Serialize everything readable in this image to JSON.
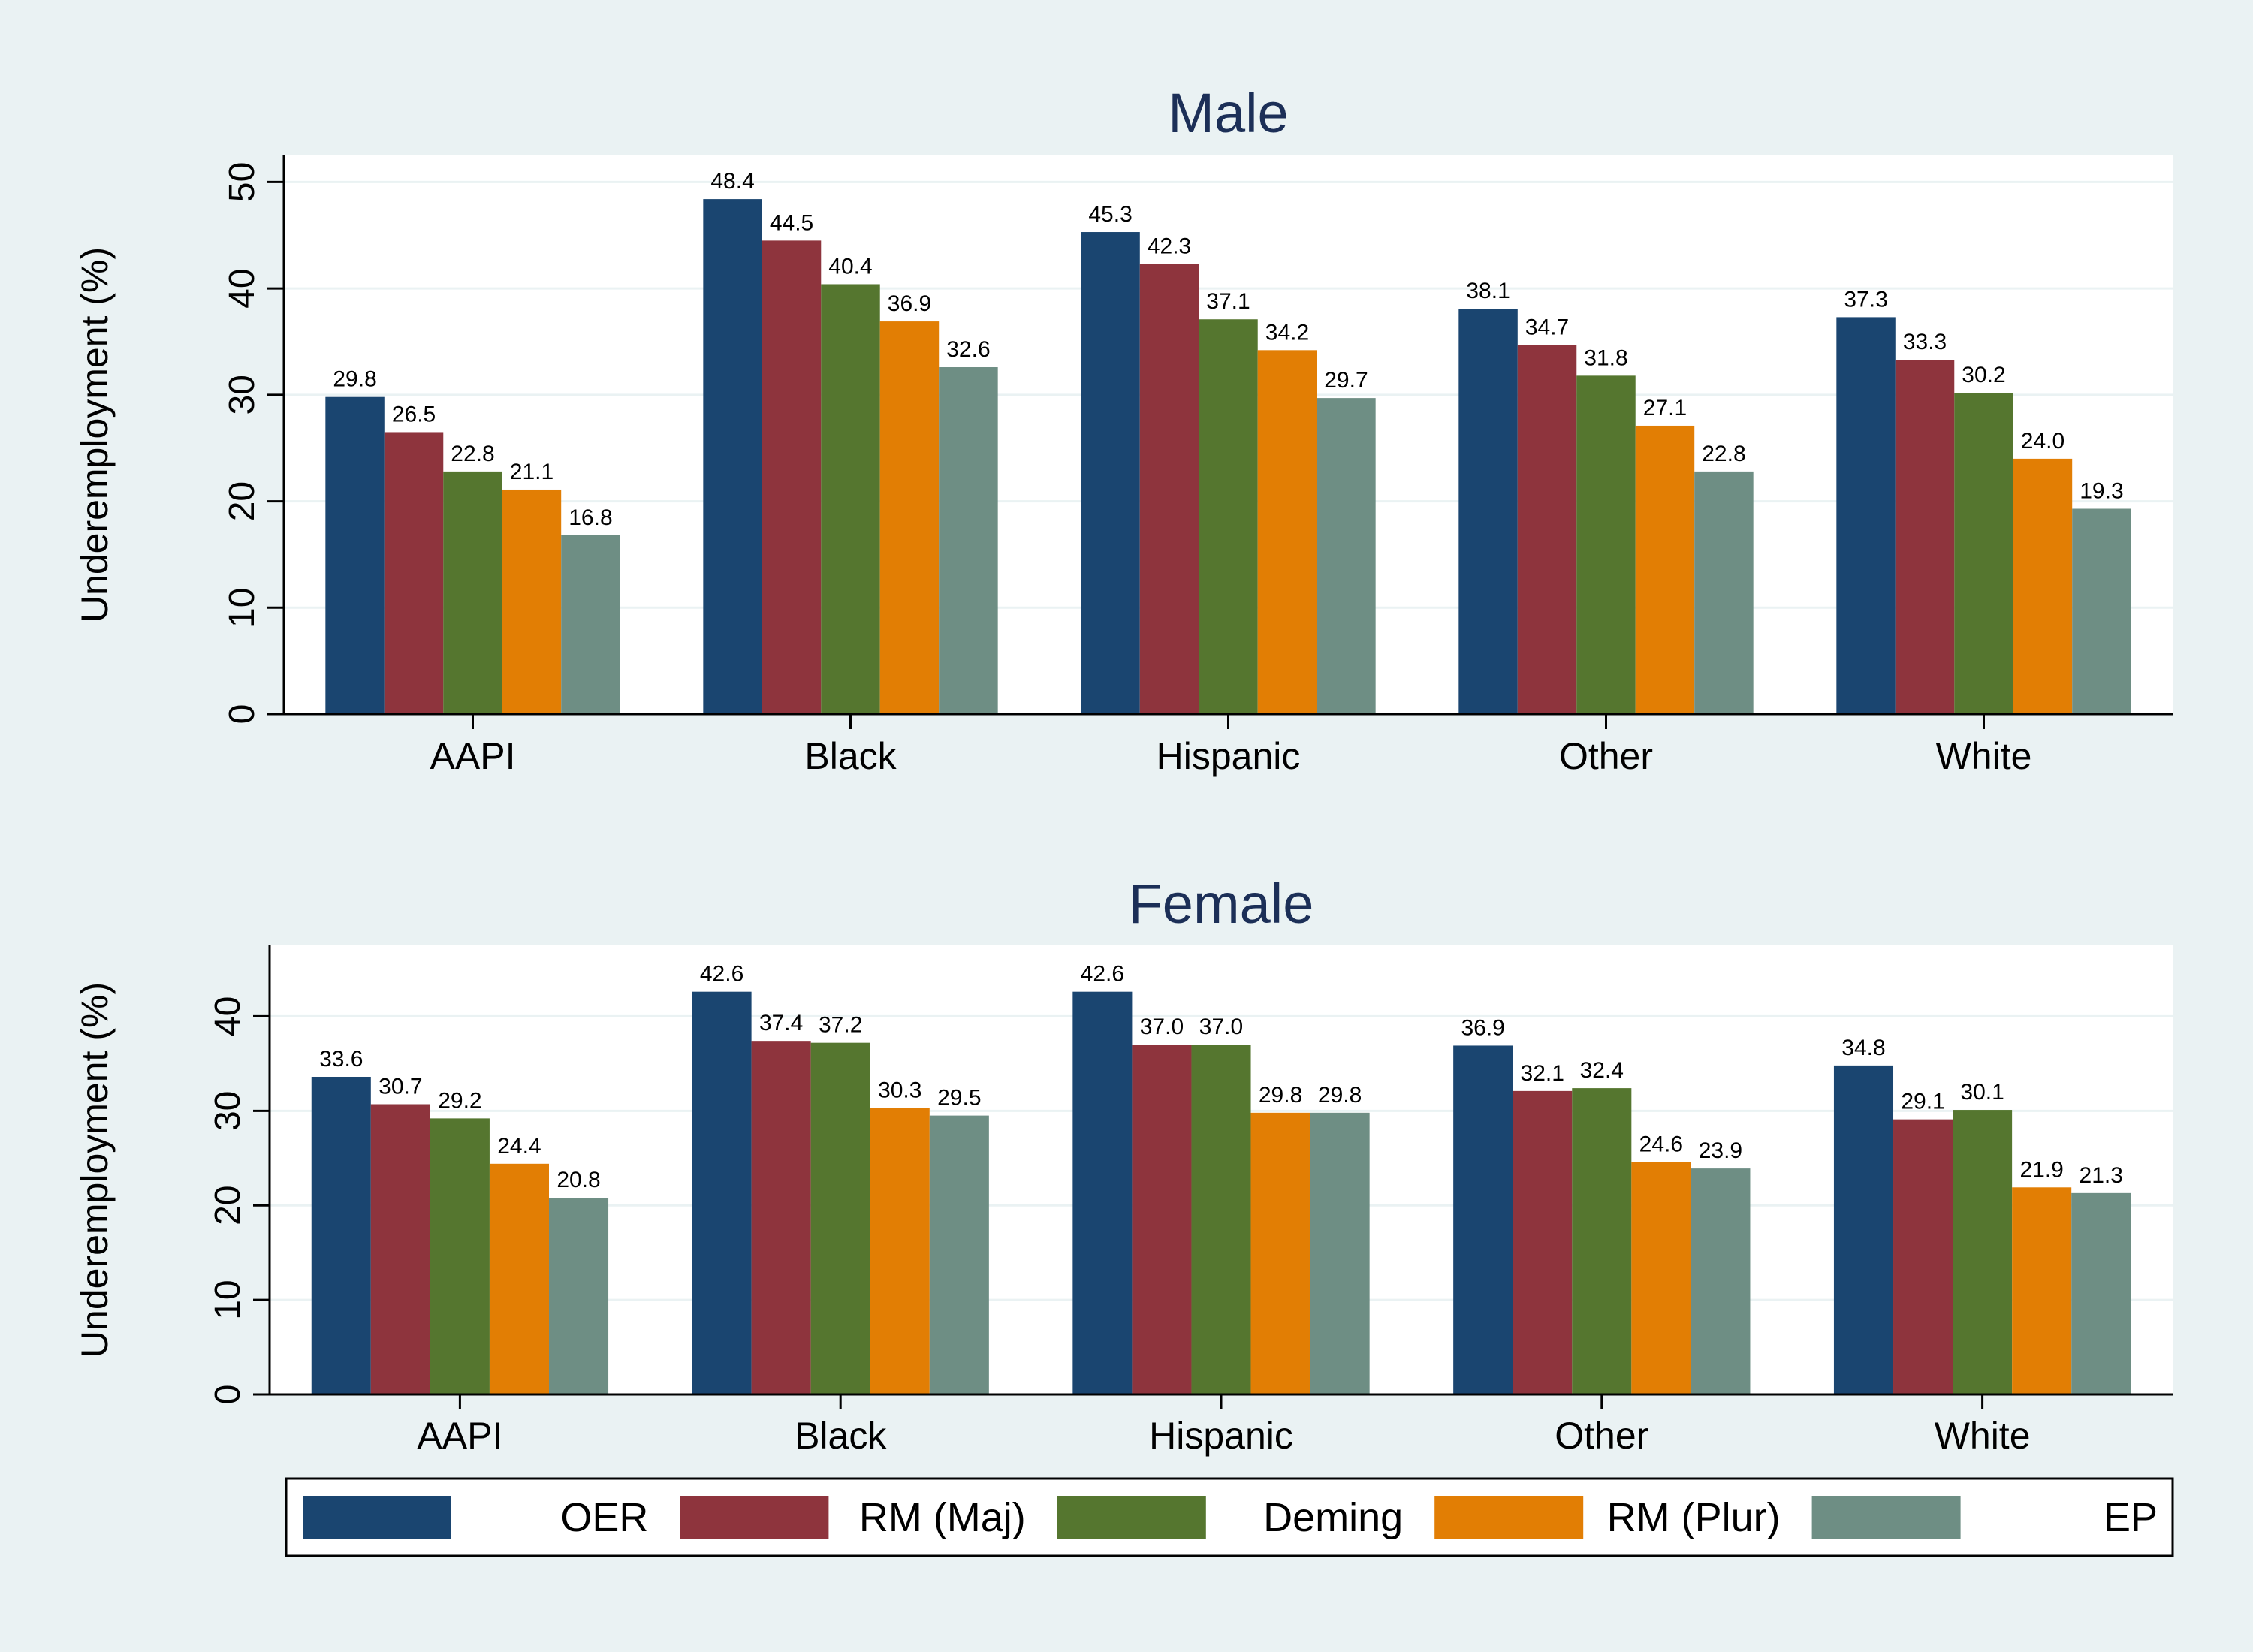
{
  "legend": {
    "entries": [
      {
        "name": "OER",
        "color": "#1a4570"
      },
      {
        "name": "RM (Maj)",
        "color": "#8e343d"
      },
      {
        "name": "Deming",
        "color": "#55762f"
      },
      {
        "name": "RM (Plur)",
        "color": "#e27e04"
      },
      {
        "name": "EP",
        "color": "#6e8e84"
      }
    ],
    "placement": "bottom"
  },
  "chart_data": [
    {
      "type": "bar",
      "title": "Male",
      "xlabel": "",
      "ylabel": "Underemployment (%)",
      "ylim": [
        0,
        52.5
      ],
      "yticks": [
        0,
        10,
        20,
        30,
        40,
        50
      ],
      "grid": true,
      "categories": [
        "AAPI",
        "Black",
        "Hispanic",
        "Other",
        "White"
      ],
      "series": [
        {
          "name": "OER",
          "values": [
            29.8,
            48.4,
            45.3,
            38.1,
            37.3
          ],
          "labels": [
            "29.8",
            "48.4",
            "45.3",
            "38.1",
            "37.3"
          ]
        },
        {
          "name": "RM (Maj)",
          "values": [
            26.5,
            44.5,
            42.3,
            34.7,
            33.3
          ],
          "labels": [
            "26.5",
            "44.5",
            "42.3",
            "34.7",
            "33.3"
          ]
        },
        {
          "name": "Deming",
          "values": [
            22.8,
            40.4,
            37.1,
            31.8,
            30.2
          ],
          "labels": [
            "22.8",
            "40.4",
            "37.1",
            "31.8",
            "30.2"
          ]
        },
        {
          "name": "RM (Plur)",
          "values": [
            21.1,
            36.9,
            34.2,
            27.1,
            24.0
          ],
          "labels": [
            "21.1",
            "36.9",
            "34.2",
            "27.1",
            "24.0"
          ]
        },
        {
          "name": "EP",
          "values": [
            16.8,
            32.6,
            29.7,
            22.8,
            19.3
          ],
          "labels": [
            "16.8",
            "32.6",
            "29.7",
            "22.8",
            "19.3"
          ]
        }
      ]
    },
    {
      "type": "bar",
      "title": "Female",
      "xlabel": "",
      "ylabel": "Underemployment (%)",
      "ylim": [
        0,
        47.5
      ],
      "yticks": [
        0,
        10,
        20,
        30,
        40
      ],
      "grid": true,
      "categories": [
        "AAPI",
        "Black",
        "Hispanic",
        "Other",
        "White"
      ],
      "series": [
        {
          "name": "OER",
          "values": [
            33.6,
            42.6,
            42.6,
            36.9,
            34.8
          ],
          "labels": [
            "33.6",
            "42.6",
            "42.6",
            "36.9",
            "34.8"
          ]
        },
        {
          "name": "RM (Maj)",
          "values": [
            30.7,
            37.4,
            37.0,
            32.1,
            29.1
          ],
          "labels": [
            "30.7",
            "37.4",
            "37.0",
            "32.1",
            "29.1"
          ]
        },
        {
          "name": "Deming",
          "values": [
            29.2,
            37.2,
            37.0,
            32.4,
            30.1
          ],
          "labels": [
            "29.2",
            "37.2",
            "37.0",
            "32.4",
            "30.1"
          ]
        },
        {
          "name": "RM (Plur)",
          "values": [
            24.4,
            30.3,
            29.8,
            24.6,
            21.9
          ],
          "labels": [
            "24.4",
            "30.3",
            "29.8",
            "24.6",
            "21.9"
          ]
        },
        {
          "name": "EP",
          "values": [
            20.8,
            29.5,
            29.8,
            23.9,
            21.3
          ],
          "labels": [
            "20.8",
            "29.5",
            "29.8",
            "23.9",
            "21.3"
          ]
        }
      ]
    }
  ]
}
